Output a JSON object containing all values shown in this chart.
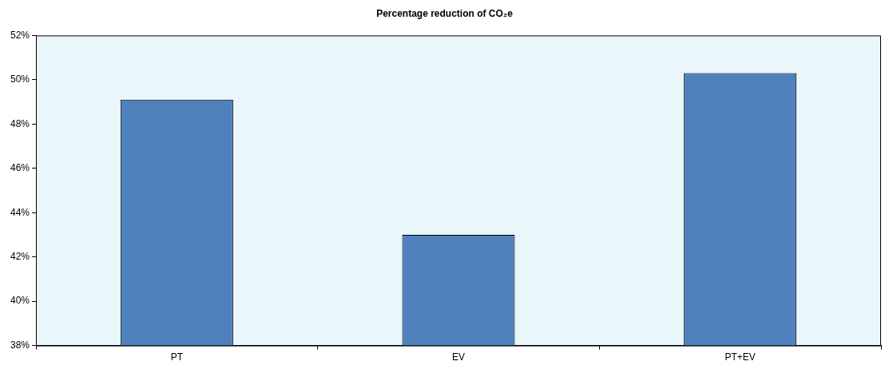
{
  "chart_data": {
    "type": "bar",
    "title": "Percentage reduction of CO₂e",
    "categories": [
      "PT",
      "EV",
      "PT+EV"
    ],
    "values": [
      49.1,
      43.0,
      50.3
    ],
    "color": "#4f81bd",
    "ylim": [
      38,
      52
    ],
    "yticks": [
      {
        "value": 38,
        "label": "38%"
      },
      {
        "value": 40,
        "label": "40%"
      },
      {
        "value": 42,
        "label": "42%"
      },
      {
        "value": 44,
        "label": "44%"
      },
      {
        "value": 46,
        "label": "46%"
      },
      {
        "value": 48,
        "label": "48%"
      },
      {
        "value": 50,
        "label": "50%"
      },
      {
        "value": 52,
        "label": "52%"
      }
    ],
    "grid": false,
    "legend": false
  }
}
